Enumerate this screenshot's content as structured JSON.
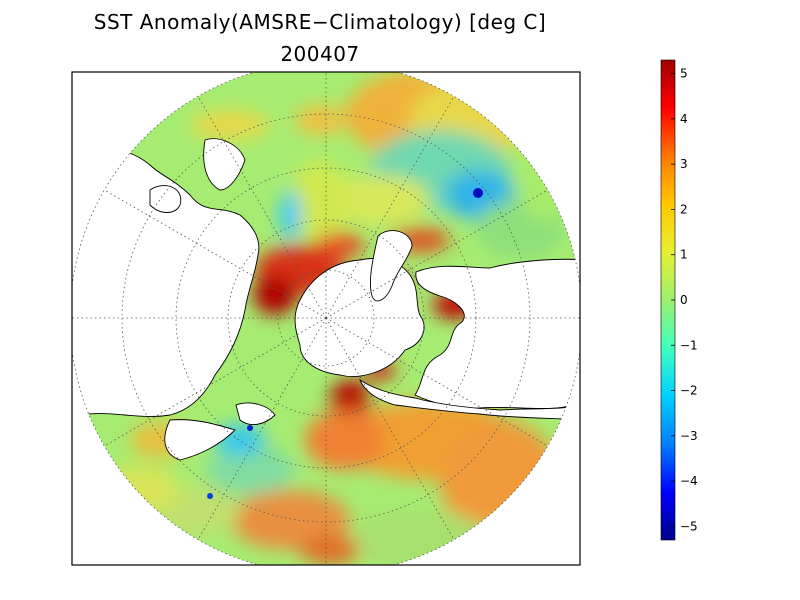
{
  "title": {
    "line1": "SST Anomaly(AMSRE−Climatology) [deg C]",
    "line2": "200407"
  },
  "map": {
    "projection": "north-polar-stereographic",
    "variable": "SST anomaly",
    "grid": "dotted",
    "land_color": "#ffffff",
    "ice_color": "#ffffff"
  },
  "colorbar": {
    "min": -5.3,
    "max": 5.3,
    "ticks": [
      "5",
      "4",
      "3",
      "2",
      "1",
      "0",
      "−1",
      "−2",
      "−3",
      "−4",
      "−5"
    ],
    "tick_values": [
      5,
      4,
      3,
      2,
      1,
      0,
      -1,
      -2,
      -3,
      -4,
      -5
    ],
    "colors": [
      "#00008c",
      "#0000ff",
      "#0080ff",
      "#00d0ff",
      "#40ffc0",
      "#9bf06e",
      "#e6f032",
      "#ffc800",
      "#ff7800",
      "#ff0000",
      "#a00000"
    ]
  }
}
